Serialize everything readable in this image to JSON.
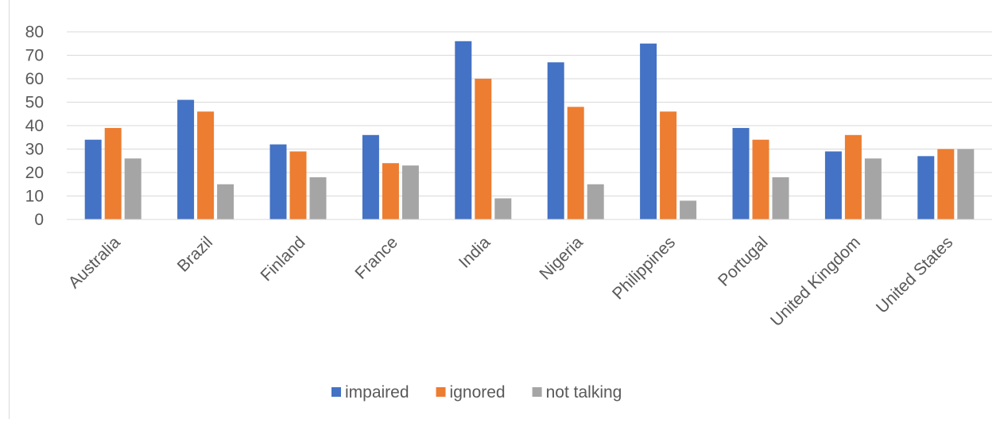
{
  "chart_data": {
    "type": "bar",
    "title": "",
    "xlabel": "",
    "ylabel": "",
    "ylim": [
      0,
      80
    ],
    "yticks": [
      0,
      10,
      20,
      30,
      40,
      50,
      60,
      70,
      80
    ],
    "grid": true,
    "legend_position": "bottom",
    "categories": [
      "Australia",
      "Brazil",
      "Finland",
      "France",
      "India",
      "Nigeria",
      "Philippines",
      "Portugal",
      "United Kingdom",
      "United States"
    ],
    "series": [
      {
        "name": "impaired",
        "color": "#4472c4",
        "values": [
          34,
          51,
          32,
          36,
          76,
          67,
          75,
          39,
          29,
          27
        ]
      },
      {
        "name": "ignored",
        "color": "#ed7d31",
        "values": [
          39,
          46,
          29,
          24,
          60,
          48,
          46,
          34,
          36,
          30
        ]
      },
      {
        "name": "not talking",
        "color": "#a5a5a5",
        "values": [
          26,
          15,
          18,
          23,
          9,
          15,
          8,
          18,
          26,
          30
        ]
      }
    ]
  }
}
